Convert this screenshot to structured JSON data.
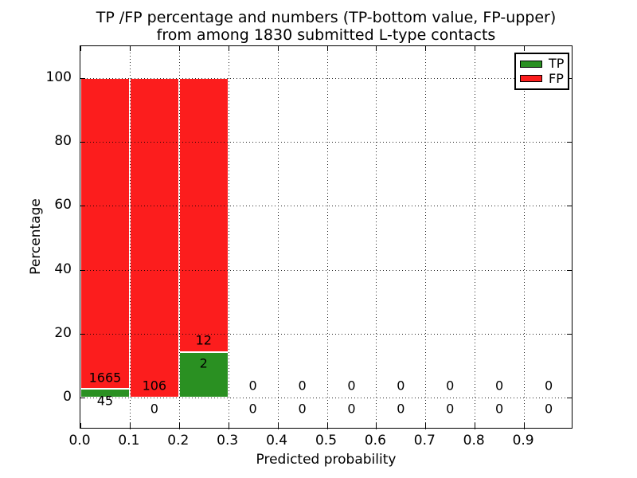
{
  "title": {
    "line1": "TP /FP percentage and numbers (TP-bottom value, FP-upper)",
    "line2": "from among 1830 submitted L-type contacts"
  },
  "colors": {
    "tp": "#2a9022",
    "fp": "#fc1d1d",
    "text": "#000000",
    "grid": "#000000",
    "background": "#ffffff"
  },
  "legend": {
    "position": "upper right",
    "entries": [
      {
        "label": "TP",
        "color": "#2a9022"
      },
      {
        "label": "FP",
        "color": "#fc1d1d"
      }
    ]
  },
  "chart_data": {
    "type": "bar",
    "stacked": true,
    "title": "TP /FP percentage and numbers (TP-bottom value, FP-upper)\nfrom among 1830 submitted L-type contacts",
    "xlabel": "Predicted probability",
    "ylabel": "Percentage",
    "xlim": [
      0,
      1
    ],
    "ylim": [
      -10,
      110
    ],
    "xticks": [
      {
        "value": 0.0,
        "label": "0.0"
      },
      {
        "value": 0.1,
        "label": "0.1"
      },
      {
        "value": 0.2,
        "label": "0.2"
      },
      {
        "value": 0.3,
        "label": "0.3"
      },
      {
        "value": 0.4,
        "label": "0.4"
      },
      {
        "value": 0.5,
        "label": "0.5"
      },
      {
        "value": 0.6,
        "label": "0.6"
      },
      {
        "value": 0.7,
        "label": "0.7"
      },
      {
        "value": 0.8,
        "label": "0.8"
      },
      {
        "value": 0.9,
        "label": "0.9"
      }
    ],
    "yticks": [
      {
        "value": 0,
        "label": "0"
      },
      {
        "value": 20,
        "label": "20"
      },
      {
        "value": 40,
        "label": "40"
      },
      {
        "value": 60,
        "label": "60"
      },
      {
        "value": 80,
        "label": "80"
      },
      {
        "value": 100,
        "label": "100"
      }
    ],
    "grid": true,
    "grid_style": "dotted",
    "bar_width": 0.1,
    "total_submitted": 1830,
    "series": [
      {
        "name": "TP",
        "color": "#2a9022"
      },
      {
        "name": "FP",
        "color": "#fc1d1d"
      }
    ],
    "bins": [
      {
        "range": [
          0.0,
          0.1
        ],
        "tp_count": 45,
        "fp_count": 1665,
        "tp_pct": 2.63,
        "fp_pct": 97.37
      },
      {
        "range": [
          0.1,
          0.2
        ],
        "tp_count": 0,
        "fp_count": 106,
        "tp_pct": 0,
        "fp_pct": 100
      },
      {
        "range": [
          0.2,
          0.3
        ],
        "tp_count": 2,
        "fp_count": 12,
        "tp_pct": 14.29,
        "fp_pct": 85.71
      },
      {
        "range": [
          0.3,
          0.4
        ],
        "tp_count": 0,
        "fp_count": 0,
        "tp_pct": 0,
        "fp_pct": 0
      },
      {
        "range": [
          0.4,
          0.5
        ],
        "tp_count": 0,
        "fp_count": 0,
        "tp_pct": 0,
        "fp_pct": 0
      },
      {
        "range": [
          0.5,
          0.6
        ],
        "tp_count": 0,
        "fp_count": 0,
        "tp_pct": 0,
        "fp_pct": 0
      },
      {
        "range": [
          0.6,
          0.7
        ],
        "tp_count": 0,
        "fp_count": 0,
        "tp_pct": 0,
        "fp_pct": 0
      },
      {
        "range": [
          0.7,
          0.8
        ],
        "tp_count": 0,
        "fp_count": 0,
        "tp_pct": 0,
        "fp_pct": 0
      },
      {
        "range": [
          0.8,
          0.9
        ],
        "tp_count": 0,
        "fp_count": 0,
        "tp_pct": 0,
        "fp_pct": 0
      },
      {
        "range": [
          0.9,
          1.0
        ],
        "tp_count": 0,
        "fp_count": 0,
        "tp_pct": 0,
        "fp_pct": 0
      }
    ],
    "value_label_offset_pct": 3.6
  }
}
